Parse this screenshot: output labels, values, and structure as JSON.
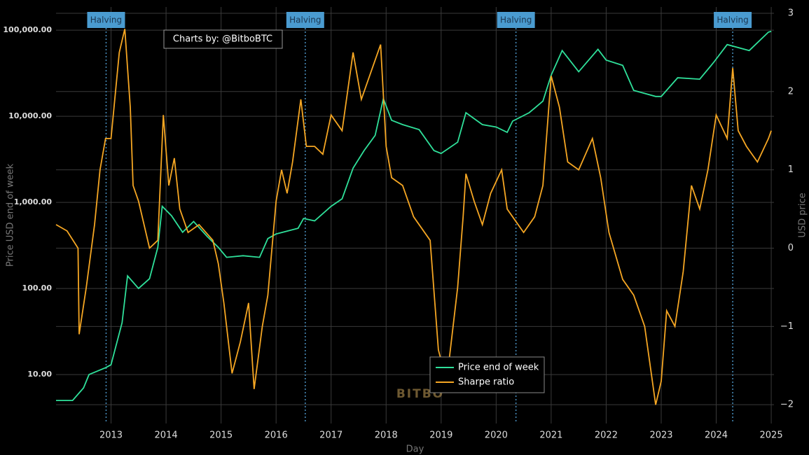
{
  "chart_data": {
    "type": "line",
    "yscale": "log",
    "grid": true,
    "legend": "bottom",
    "xlabel": "Day",
    "ylabel": "Price USD end of week",
    "y2label": "USD price",
    "xlim": [
      2012.0,
      2025.05
    ],
    "xticks": [
      2013,
      2014,
      2015,
      2016,
      2017,
      2018,
      2019,
      2020,
      2021,
      2022,
      2023,
      2024,
      2025
    ],
    "ylim": [
      2.7,
      186000
    ],
    "yticks": [
      {
        "value": 10,
        "label": "10.00"
      },
      {
        "value": 100,
        "label": "100.00"
      },
      {
        "value": 1000,
        "label": "1,000.00"
      },
      {
        "value": 10000,
        "label": "10,000.00"
      },
      {
        "value": 100000,
        "label": "100,000.00"
      }
    ],
    "y2lim": [
      -2.24,
      3.08
    ],
    "y2ticks": [
      {
        "value": -2,
        "label": "−2"
      },
      {
        "value": -1,
        "label": "−1"
      },
      0,
      1,
      2,
      3
    ],
    "annotations": [
      {
        "x": 2012.91,
        "text": "Halving"
      },
      {
        "x": 2016.53,
        "text": "Halving"
      },
      {
        "x": 2020.36,
        "text": "Halving"
      },
      {
        "x": 2024.3,
        "text": "Halving"
      }
    ],
    "credit": "Charts by: @BitboBTC",
    "watermark": "BITBO",
    "series": [
      {
        "name": "Price end of week",
        "color": "#2fe09a",
        "x": [
          2012.0,
          2012.3,
          2012.5,
          2012.6,
          2012.9,
          2013.0,
          2013.2,
          2013.3,
          2013.5,
          2013.7,
          2013.85,
          2013.93,
          2014.1,
          2014.3,
          2014.5,
          2014.75,
          2014.95,
          2015.1,
          2015.4,
          2015.7,
          2015.85,
          2016.0,
          2016.4,
          2016.5,
          2016.7,
          2017.0,
          2017.2,
          2017.4,
          2017.6,
          2017.8,
          2017.95,
          2018.1,
          2018.3,
          2018.6,
          2018.87,
          2019.0,
          2019.3,
          2019.45,
          2019.75,
          2020.0,
          2020.2,
          2020.3,
          2020.6,
          2020.85,
          2021.0,
          2021.2,
          2021.5,
          2021.85,
          2022.0,
          2022.3,
          2022.5,
          2022.9,
          2023.0,
          2023.3,
          2023.7,
          2023.95,
          2024.2,
          2024.6,
          2024.95,
          2025.0
        ],
        "values": [
          5,
          5,
          7,
          10,
          12,
          13,
          40,
          140,
          100,
          130,
          300,
          900,
          700,
          450,
          600,
          400,
          300,
          230,
          240,
          230,
          380,
          430,
          500,
          650,
          610,
          900,
          1100,
          2500,
          4000,
          6000,
          16000,
          9000,
          8000,
          7000,
          4000,
          3700,
          5000,
          11000,
          8000,
          7500,
          6500,
          8800,
          11000,
          15000,
          30000,
          58000,
          33000,
          60000,
          45000,
          39000,
          20000,
          17000,
          17000,
          28000,
          27000,
          42000,
          68000,
          58000,
          95000,
          97000
        ]
      },
      {
        "name": "Sharpe ratio",
        "color": "#f5a623",
        "axis": "y2",
        "x": [
          2012.0,
          2012.2,
          2012.4,
          2012.42,
          2012.55,
          2012.7,
          2012.8,
          2012.9,
          2013.0,
          2013.15,
          2013.25,
          2013.35,
          2013.4,
          2013.5,
          2013.7,
          2013.85,
          2013.95,
          2014.05,
          2014.15,
          2014.25,
          2014.4,
          2014.6,
          2014.85,
          2014.95,
          2015.05,
          2015.2,
          2015.35,
          2015.5,
          2015.6,
          2015.75,
          2015.85,
          2016.0,
          2016.1,
          2016.2,
          2016.3,
          2016.45,
          2016.55,
          2016.7,
          2016.85,
          2017.0,
          2017.2,
          2017.4,
          2017.55,
          2017.75,
          2017.9,
          2018.0,
          2018.1,
          2018.3,
          2018.5,
          2018.8,
          2018.95,
          2019.1,
          2019.3,
          2019.4,
          2019.45,
          2019.6,
          2019.75,
          2019.9,
          2020.1,
          2020.2,
          2020.35,
          2020.5,
          2020.7,
          2020.85,
          2021.0,
          2021.15,
          2021.3,
          2021.5,
          2021.75,
          2021.9,
          2022.05,
          2022.3,
          2022.5,
          2022.7,
          2022.9,
          2023.0,
          2023.1,
          2023.25,
          2023.4,
          2023.55,
          2023.7,
          2023.85,
          2024.0,
          2024.2,
          2024.3,
          2024.4,
          2024.55,
          2024.75,
          2024.95,
          2025.0
        ],
        "values": [
          0.3,
          0.22,
          0.0,
          -1.1,
          -0.5,
          0.3,
          1.0,
          1.4,
          1.4,
          2.5,
          2.8,
          1.8,
          0.8,
          0.6,
          0.0,
          0.1,
          1.7,
          0.8,
          1.15,
          0.5,
          0.2,
          0.3,
          0.1,
          -0.2,
          -0.7,
          -1.6,
          -1.2,
          -0.7,
          -1.8,
          -1.0,
          -0.6,
          0.6,
          1.0,
          0.7,
          1.1,
          1.9,
          1.3,
          1.3,
          1.2,
          1.7,
          1.5,
          2.5,
          1.9,
          2.3,
          2.6,
          1.3,
          0.9,
          0.8,
          0.4,
          0.1,
          -1.3,
          -1.7,
          -0.5,
          0.4,
          0.95,
          0.6,
          0.3,
          0.7,
          1.0,
          0.5,
          0.35,
          0.2,
          0.4,
          0.8,
          2.2,
          1.8,
          1.1,
          1.0,
          1.4,
          0.9,
          0.2,
          -0.4,
          -0.6,
          -1.0,
          -2.0,
          -1.7,
          -0.8,
          -1.0,
          -0.3,
          0.8,
          0.5,
          1.0,
          1.7,
          1.4,
          2.3,
          1.5,
          1.3,
          1.1,
          1.4,
          1.5
        ]
      }
    ]
  }
}
